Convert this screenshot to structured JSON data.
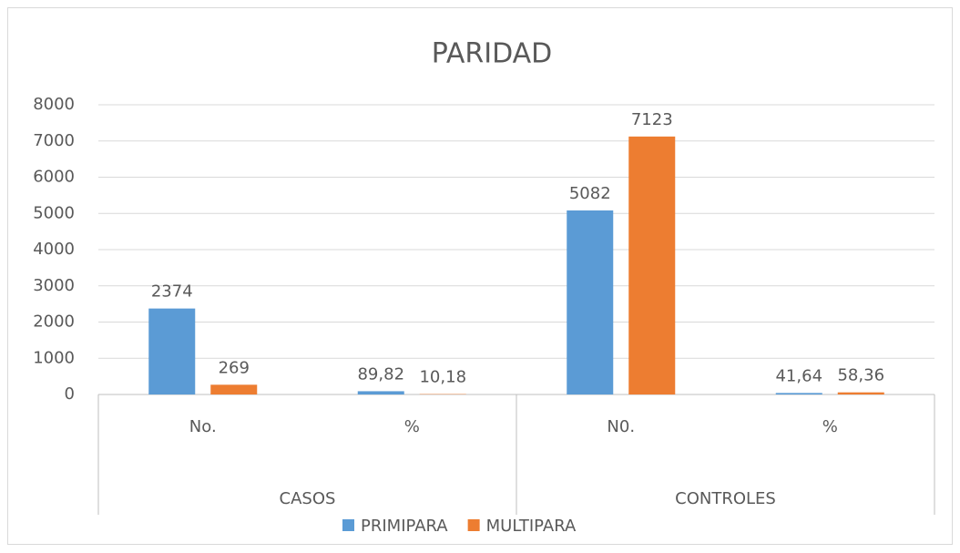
{
  "chart_data": {
    "type": "bar",
    "title": "PARIDAD",
    "categories": [
      "No.",
      "%",
      "N0.",
      "%"
    ],
    "category_groups": [
      "CASOS",
      "CONTROLES"
    ],
    "series": [
      {
        "name": "PRIMIPARA",
        "color": "#5b9bd5",
        "values": [
          2374,
          89.82,
          5082,
          41.64
        ],
        "value_labels": [
          "2374",
          "89,82",
          "5082",
          "41,64"
        ]
      },
      {
        "name": "MULTIPARA",
        "color": "#ed7d31",
        "values": [
          269,
          10.18,
          7123,
          58.36
        ],
        "value_labels": [
          "269",
          "10,18",
          "7123",
          "58,36"
        ]
      }
    ],
    "ylim": [
      0,
      8000
    ],
    "yticks": [
      0,
      1000,
      2000,
      3000,
      4000,
      5000,
      6000,
      7000,
      8000
    ],
    "grid": true,
    "legend": "bottom"
  }
}
